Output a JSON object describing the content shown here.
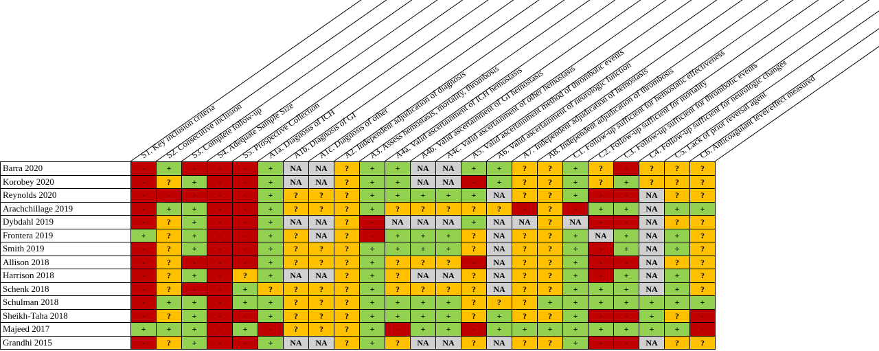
{
  "criteria": [
    "S1. Key inclusion criteria",
    "S2. Consecutive inclusion",
    "S3. Complete follow-up",
    "S4. Adequate Sample Size",
    "S5. Prospective Collection",
    "A1a. Diagnosis of ICH",
    "A1b. Diagnosis of GI",
    "A1c. Diagnosis of other",
    "A2. Independent adjudication of diagnosis",
    "A3. Assess hemostasis, mortality, thrombosis",
    "A4a. Valid ascertainment of ICH hemostasis",
    "A4b. Valid ascertainment of GI hemostasis",
    "A4c. Valid ascertainment of other hemostasis",
    "A5. Valid ascertainment method of thrombotic events",
    "A6. Valid ascertainment of neurologic function",
    "A7. Independent adjudication of hemostasis",
    "A8. Independent adjudication of thrombosis",
    "C1. Follow-up sufficient for hemostatic effectiveness",
    "C2. Follow-up sufficient for mortality",
    "C3. Follow-up sufficient for thrombotic events",
    "C4. Follow-up sufficient for neurologic changes",
    "C5. Lack of prior reversal agent",
    "C6. Anticoagulant level/effect measured"
  ],
  "legend_colors": {
    "-": "#c00000",
    "+": "#92d050",
    "?": "#ffc000",
    "NA": "#d0d0d0"
  },
  "rows": [
    {
      "study": "Barra 2020",
      "cells": [
        "-",
        "+",
        "-",
        "-",
        "-",
        "+",
        "NA",
        "NA",
        "?",
        "+",
        "+",
        "NA",
        "NA",
        "+",
        "+",
        "?",
        "?",
        "+",
        "?",
        "-",
        "?",
        "?",
        "?"
      ]
    },
    {
      "study": "Korobey 2020",
      "cells": [
        "-",
        "?",
        "+",
        "-",
        "-",
        "+",
        "NA",
        "NA",
        "?",
        "+",
        "+",
        "NA",
        "NA",
        "-",
        "+",
        "?",
        "?",
        "+",
        "?",
        "+",
        "?",
        "?",
        "?"
      ]
    },
    {
      "study": "Reynolds 2020",
      "cells": [
        "-",
        "-",
        "-",
        "-",
        "-",
        "+",
        "?",
        "?",
        "?",
        "+",
        "+",
        "+",
        "+",
        "+",
        "NA",
        "?",
        "?",
        "+",
        "-",
        "-",
        "NA",
        "?",
        "?"
      ]
    },
    {
      "study": "Arachchillage 2019",
      "cells": [
        "-",
        "+",
        "+",
        "-",
        "-",
        "+",
        "?",
        "?",
        "?",
        "+",
        "?",
        "?",
        "?",
        "?",
        "?",
        "-",
        "?",
        "-",
        "+",
        "+",
        "NA",
        "+",
        "+"
      ]
    },
    {
      "study": "Dybdahl 2019",
      "cells": [
        "-",
        "?",
        "+",
        "-",
        "-",
        "+",
        "NA",
        "NA",
        "?",
        "-",
        "NA",
        "NA",
        "NA",
        "+",
        "NA",
        "NA",
        "?",
        "NA",
        "-",
        "-",
        "NA",
        "?",
        "?"
      ]
    },
    {
      "study": "Frontera 2019",
      "cells": [
        "+",
        "?",
        "+",
        "-",
        "-",
        "+",
        "?",
        "NA",
        "?",
        "-",
        "+",
        "+",
        "+",
        "?",
        "NA",
        "?",
        "?",
        "+",
        "NA",
        "+",
        "NA",
        "+",
        "?"
      ]
    },
    {
      "study": "Smith 2019",
      "cells": [
        "-",
        "?",
        "+",
        "-",
        "-",
        "+",
        "?",
        "?",
        "?",
        "+",
        "+",
        "+",
        "+",
        "?",
        "NA",
        "?",
        "?",
        "+",
        "-",
        "+",
        "NA",
        "+",
        "?"
      ]
    },
    {
      "study": "Allison 2018",
      "cells": [
        "-",
        "?",
        "-",
        "-",
        "-",
        "+",
        "?",
        "?",
        "?",
        "+",
        "?",
        "?",
        "?",
        "-",
        "NA",
        "?",
        "?",
        "+",
        "-",
        "-",
        "NA",
        "?",
        "?"
      ]
    },
    {
      "study": "Harrison 2018",
      "cells": [
        "-",
        "?",
        "+",
        "-",
        "?",
        "+",
        "NA",
        "NA",
        "?",
        "+",
        "?",
        "NA",
        "NA",
        "?",
        "NA",
        "?",
        "?",
        "+",
        "-",
        "+",
        "NA",
        "+",
        "?"
      ]
    },
    {
      "study": "Schenk 2018",
      "cells": [
        "-",
        "?",
        "-",
        "-",
        "+",
        "?",
        "?",
        "?",
        "?",
        "+",
        "?",
        "?",
        "?",
        "?",
        "NA",
        "?",
        "?",
        "+",
        "+",
        "+",
        "NA",
        "+",
        "?"
      ]
    },
    {
      "study": "Schulman 2018",
      "cells": [
        "-",
        "+",
        "+",
        "-",
        "+",
        "+",
        "?",
        "?",
        "?",
        "+",
        "+",
        "+",
        "+",
        "?",
        "?",
        "?",
        "+",
        "+",
        "+",
        "+",
        "+",
        "+",
        "+"
      ]
    },
    {
      "study": "Sheikh-Taha 2018",
      "cells": [
        "-",
        "?",
        "+",
        "-",
        "-",
        "+",
        "?",
        "?",
        "?",
        "+",
        "+",
        "+",
        "+",
        "?",
        "+",
        "?",
        "?",
        "+",
        "-",
        "-",
        "+",
        "?",
        "-"
      ]
    },
    {
      "study": "Majeed 2017",
      "cells": [
        "+",
        "+",
        "+",
        "-",
        "+",
        "-",
        "?",
        "?",
        "?",
        "+",
        "-",
        "+",
        "+",
        "-",
        "+",
        "+",
        "+",
        "+",
        "+",
        "+",
        "+",
        "+",
        "-"
      ]
    },
    {
      "study": "Grandhi 2015",
      "cells": [
        "-",
        "?",
        "+",
        "-",
        "-",
        "+",
        "NA",
        "NA",
        "?",
        "+",
        "?",
        "NA",
        "NA",
        "?",
        "NA",
        "?",
        "?",
        "+",
        "-",
        "-",
        "NA",
        "?",
        "?"
      ]
    }
  ]
}
